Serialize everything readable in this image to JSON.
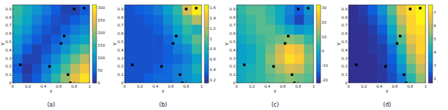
{
  "chart_data": [
    {
      "type": "heatmap",
      "caption": "(a)",
      "x_label": "x",
      "y_label": "y",
      "xlim": [
        0,
        1
      ],
      "ylim": [
        0,
        0.95
      ],
      "xticks": [
        0,
        0.2,
        0.4,
        0.6,
        0.8,
        1
      ],
      "yticks": [
        0,
        0.1,
        0.2,
        0.3,
        0.4,
        0.5,
        0.6,
        0.7,
        0.8,
        0.9
      ],
      "cells": [
        [
          60,
          20,
          40,
          90,
          150,
          200,
          250,
          290
        ],
        [
          40,
          10,
          30,
          70,
          120,
          170,
          220,
          260
        ],
        [
          60,
          20,
          20,
          50,
          90,
          140,
          180,
          220
        ],
        [
          90,
          40,
          20,
          30,
          60,
          100,
          140,
          170
        ],
        [
          110,
          70,
          40,
          25,
          40,
          70,
          100,
          120
        ],
        [
          130,
          100,
          60,
          35,
          25,
          45,
          70,
          90
        ],
        [
          150,
          120,
          80,
          50,
          30,
          25,
          40,
          60
        ],
        [
          160,
          130,
          100,
          70,
          40,
          20,
          20,
          40
        ]
      ],
      "colorbar": {
        "range": [
          0,
          310
        ],
        "ticks": [
          0,
          50,
          100,
          150,
          200,
          250,
          300
        ]
      },
      "points": {
        "x": [
          0.1,
          0.48,
          0.63,
          0.67,
          0.72,
          0.75,
          0.8,
          0.93
        ],
        "y": [
          0.22,
          0.2,
          0.48,
          0.57,
          0.1,
          0.0,
          0.9,
          0.91
        ]
      }
    },
    {
      "type": "heatmap",
      "caption": "(b)",
      "x_label": "x",
      "y_label": "y",
      "xlim": [
        0,
        1
      ],
      "ylim": [
        0,
        0.95
      ],
      "xticks": [
        0,
        0.2,
        0.4,
        0.6,
        0.8,
        1
      ],
      "yticks": [
        0,
        0.1,
        0.2,
        0.3,
        0.4,
        0.5,
        0.6,
        0.7,
        0.8,
        0.9
      ],
      "cells": [
        [
          0.3,
          0.3,
          0.35,
          0.4,
          0.4,
          0.5,
          0.6,
          0.7
        ],
        [
          0.3,
          0.3,
          0.3,
          0.35,
          0.4,
          0.5,
          0.6,
          0.8
        ],
        [
          0.3,
          0.3,
          0.3,
          0.3,
          0.35,
          0.4,
          0.5,
          0.7
        ],
        [
          0.3,
          0.3,
          0.3,
          0.3,
          0.35,
          0.5,
          0.6,
          0.9
        ],
        [
          0.3,
          0.3,
          0.3,
          0.3,
          0.4,
          0.6,
          0.8,
          1.0
        ],
        [
          0.3,
          0.3,
          0.3,
          0.35,
          0.5,
          0.7,
          0.9,
          0.8
        ],
        [
          0.3,
          0.3,
          0.35,
          0.4,
          0.6,
          0.8,
          1.0,
          1.2
        ],
        [
          0.3,
          0.35,
          0.4,
          0.5,
          0.7,
          0.9,
          1.3,
          1.6
        ]
      ],
      "colorbar": {
        "range": [
          0.15,
          1.65
        ],
        "ticks": [
          0.2,
          0.4,
          0.6,
          0.8,
          1,
          1.2,
          1.4,
          1.6
        ]
      },
      "points": {
        "x": [
          0.1,
          0.48,
          0.63,
          0.67,
          0.72,
          0.75,
          0.8,
          0.93
        ],
        "y": [
          0.22,
          0.2,
          0.48,
          0.57,
          0.1,
          0.0,
          0.9,
          0.91
        ]
      }
    },
    {
      "type": "heatmap",
      "caption": "(c)",
      "x_label": "x",
      "y_label": "y",
      "xlim": [
        0,
        1
      ],
      "ylim": [
        0,
        0.95
      ],
      "xticks": [
        0,
        0.2,
        0.4,
        0.6,
        0.8,
        1
      ],
      "yticks": [
        0,
        0.1,
        0.2,
        0.3,
        0.4,
        0.5,
        0.6,
        0.7,
        0.8,
        0.9
      ],
      "cells": [
        [
          0,
          3,
          5,
          8,
          10,
          12,
          10,
          8
        ],
        [
          0,
          2,
          5,
          10,
          15,
          20,
          18,
          10
        ],
        [
          -2,
          0,
          5,
          12,
          20,
          28,
          25,
          12
        ],
        [
          -3,
          0,
          5,
          10,
          18,
          25,
          22,
          10
        ],
        [
          0,
          3,
          6,
          8,
          10,
          12,
          10,
          5
        ],
        [
          2,
          5,
          8,
          8,
          5,
          0,
          -5,
          -2
        ],
        [
          3,
          6,
          8,
          6,
          0,
          -10,
          -18,
          -8
        ],
        [
          5,
          8,
          8,
          5,
          0,
          -8,
          -15,
          -5
        ]
      ],
      "colorbar": {
        "range": [
          -22,
          32
        ],
        "ticks": [
          -20,
          -10,
          0,
          10,
          20,
          30
        ]
      },
      "points": {
        "x": [
          0.1,
          0.48,
          0.63,
          0.67,
          0.72,
          0.75,
          0.8,
          0.93
        ],
        "y": [
          0.22,
          0.2,
          0.48,
          0.57,
          0.1,
          0.0,
          0.9,
          0.91
        ]
      }
    },
    {
      "type": "heatmap",
      "caption": "(d)",
      "x_label": "x",
      "y_label": "y",
      "xlim": [
        0,
        1
      ],
      "ylim": [
        0,
        0.95
      ],
      "xticks": [
        0,
        0.2,
        0.4,
        0.6,
        0.8,
        1
      ],
      "yticks": [
        0,
        0.1,
        0.2,
        0.3,
        0.4,
        0.5,
        0.6,
        0.7,
        0.8,
        0.9
      ],
      "cells": [
        [
          1.8,
          1.8,
          1.8,
          1.9,
          2.2,
          3,
          4.5,
          5.5
        ],
        [
          1.8,
          1.8,
          1.8,
          1.9,
          2.3,
          3.5,
          5,
          6
        ],
        [
          1.8,
          1.8,
          1.8,
          2,
          2.5,
          4,
          5.5,
          6.5
        ],
        [
          1.8,
          1.8,
          1.9,
          2,
          2.8,
          4.5,
          6,
          7
        ],
        [
          1.8,
          1.8,
          1.9,
          2.2,
          3.5,
          5,
          6.5,
          7
        ],
        [
          1.8,
          1.8,
          2,
          2.5,
          4,
          5.5,
          7,
          7.2
        ],
        [
          1.8,
          1.9,
          2.2,
          3,
          4.5,
          6,
          7,
          7.5
        ],
        [
          1.8,
          2,
          2.5,
          3.5,
          5,
          6.5,
          7.2,
          7.5
        ]
      ],
      "colorbar": {
        "range": [
          1.7,
          7.6
        ],
        "ticks": [
          2,
          3,
          4,
          5,
          6,
          7
        ]
      },
      "points": {
        "x": [
          0.1,
          0.48,
          0.63,
          0.67,
          0.72,
          0.75,
          0.8,
          0.93
        ],
        "y": [
          0.22,
          0.2,
          0.48,
          0.57,
          0.1,
          0.0,
          0.9,
          0.91
        ]
      }
    }
  ]
}
